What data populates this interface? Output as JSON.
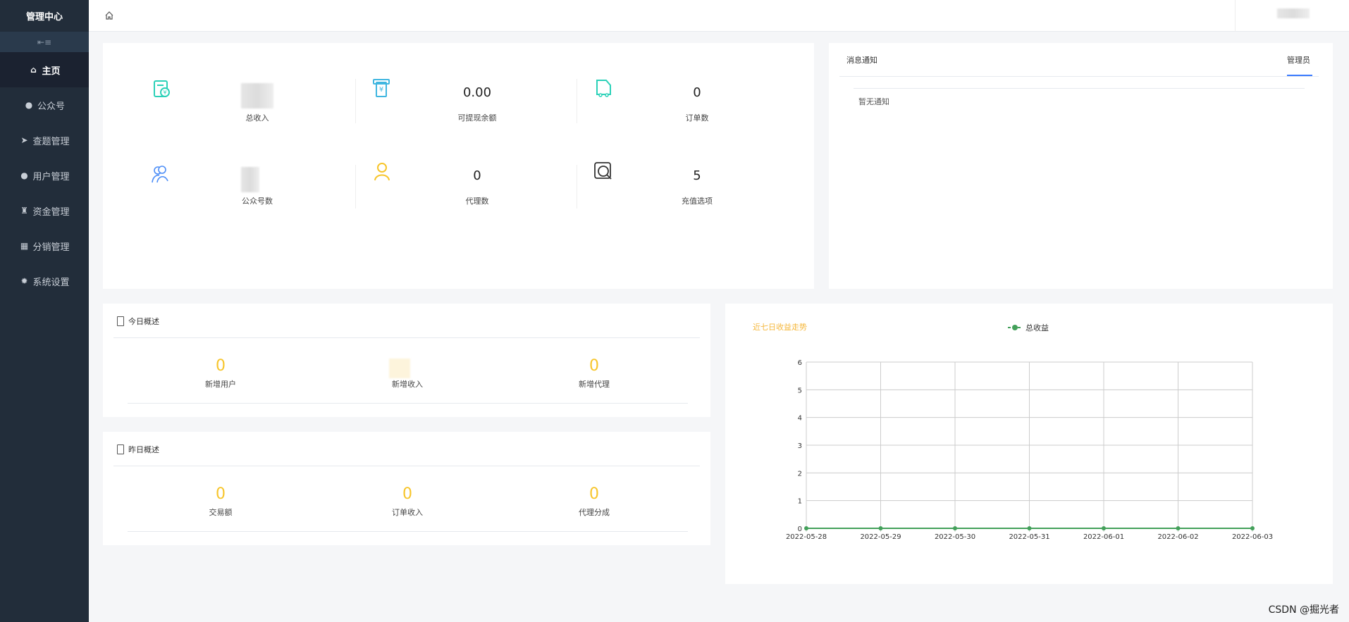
{
  "sidebar": {
    "brand": "管理中心",
    "collapse_icon": "menu-fold-icon",
    "items": [
      {
        "label": "主页",
        "icon": "home-icon",
        "active": true
      },
      {
        "label": "公众号",
        "icon": "wechat-icon"
      },
      {
        "label": "查题管理",
        "icon": "paper-plane-icon"
      },
      {
        "label": "用户管理",
        "icon": "user-icon"
      },
      {
        "label": "资金管理",
        "icon": "money-bag-icon"
      },
      {
        "label": "分销管理",
        "icon": "gift-icon"
      },
      {
        "label": "系统设置",
        "icon": "gear-icon"
      }
    ]
  },
  "header": {
    "home_icon": "home-outline-icon"
  },
  "stats": [
    {
      "label": "总收入",
      "value": null,
      "icon": "income-icon",
      "color": "#2bd1b8"
    },
    {
      "label": "可提现余额",
      "value": "0.00",
      "icon": "withdraw-icon",
      "color": "#3fb6e0"
    },
    {
      "label": "订单数",
      "value": "0",
      "icon": "order-truck-icon",
      "color": "#2bd1b8"
    },
    {
      "label": "公众号数",
      "value": null,
      "icon": "users-icon",
      "color": "#4d8ef7"
    },
    {
      "label": "代理数",
      "value": "0",
      "icon": "agent-icon",
      "color": "#f7c52b"
    },
    {
      "label": "充值选项",
      "value": "5",
      "icon": "recharge-search-icon",
      "color": "#333333"
    }
  ],
  "notice": {
    "tab_left": "消息通知",
    "tab_right": "管理员",
    "empty": "暂无通知",
    "accent": "#3a7afe"
  },
  "today": {
    "title": "今日概述",
    "items": [
      {
        "label": "新增用户",
        "value": "0"
      },
      {
        "label": "新增收入",
        "value": null
      },
      {
        "label": "新增代理",
        "value": "0"
      }
    ]
  },
  "yesterday": {
    "title": "昨日概述",
    "items": [
      {
        "label": "交易额",
        "value": "0"
      },
      {
        "label": "订单收入",
        "value": "0"
      },
      {
        "label": "代理分成",
        "value": "0"
      }
    ]
  },
  "chart_data": {
    "type": "line",
    "title": "近七日收益走势",
    "x": [
      "2022-05-28",
      "2022-05-29",
      "2022-05-30",
      "2022-05-31",
      "2022-06-01",
      "2022-06-02",
      "2022-06-03"
    ],
    "series": [
      {
        "name": "总收益",
        "values": [
          0,
          0,
          0,
          0,
          0,
          0,
          0
        ],
        "color": "#43a05a"
      }
    ],
    "ylim": [
      0,
      6
    ],
    "yticks": [
      "0",
      "1",
      "2",
      "3",
      "4",
      "5",
      "6"
    ],
    "grid": true,
    "legend": "top-center"
  },
  "watermark": "CSDN @掘光者"
}
